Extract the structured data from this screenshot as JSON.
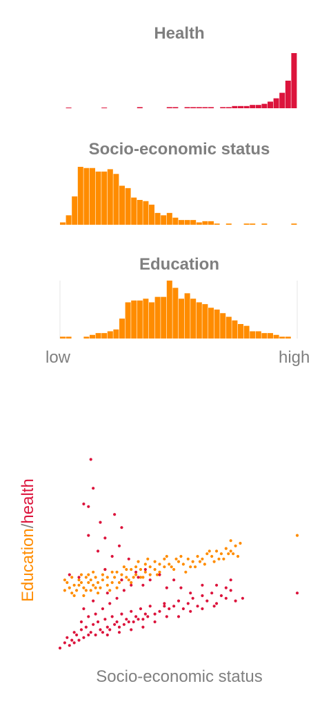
{
  "colors": {
    "health": "#dc143c",
    "education": "#ff8c00",
    "ses": "#ff8c00",
    "muted": "#7f7f7f",
    "grid": "#e6e6e6"
  },
  "range_labels": {
    "low": "low",
    "high": "high"
  },
  "chart_data": [
    {
      "type": "bar",
      "title": "Health",
      "xlabel": "",
      "ylabel": "",
      "bins": 40,
      "xlim": [
        0,
        1
      ],
      "values": [
        0,
        0.5,
        0,
        0,
        0,
        0,
        0,
        0.5,
        0,
        0,
        0,
        0,
        0,
        1,
        0,
        0,
        0,
        0,
        1,
        1,
        0,
        1,
        1,
        1,
        1,
        1,
        0,
        1,
        1,
        2,
        2,
        2,
        3,
        3,
        4,
        6,
        9,
        14,
        25,
        50
      ]
    },
    {
      "type": "bar",
      "title": "Socio-economic status",
      "xlabel": "",
      "ylabel": "",
      "bins": 40,
      "xlim": [
        0,
        1
      ],
      "values": [
        2,
        8,
        24,
        49,
        48,
        48,
        45,
        45,
        47,
        43,
        33,
        31,
        23,
        21,
        20,
        17,
        10,
        8,
        10,
        6,
        4,
        4,
        4,
        2,
        3,
        3,
        1,
        0,
        1,
        0,
        0,
        1,
        1,
        0,
        1,
        0,
        0,
        0,
        0,
        1
      ]
    },
    {
      "type": "bar",
      "title": "Education",
      "xlabel": "",
      "ylabel": "",
      "bins": 40,
      "xlim": [
        0,
        1
      ],
      "values": [
        1,
        1,
        0,
        0,
        1,
        2,
        3,
        3,
        4,
        5,
        11,
        20,
        21,
        21,
        22,
        20,
        23,
        23,
        32,
        28,
        22,
        25,
        22,
        20,
        19,
        17,
        16,
        14,
        12,
        10,
        8,
        7,
        4,
        4,
        3,
        3,
        2,
        1,
        1,
        0
      ]
    },
    {
      "type": "scatter",
      "title": "",
      "xlabel": "Socio-economic status",
      "ylabel": "Education/health",
      "xlim": [
        0,
        1
      ],
      "ylim": [
        0,
        1
      ],
      "series": [
        {
          "name": "Education",
          "points": [
            [
              0.02,
              0.22
            ],
            [
              0.04,
              0.23
            ],
            [
              0.05,
              0.21
            ],
            [
              0.06,
              0.24
            ],
            [
              0.03,
              0.25
            ],
            [
              0.07,
              0.22
            ],
            [
              0.08,
              0.26
            ],
            [
              0.1,
              0.23
            ],
            [
              0.12,
              0.25
            ],
            [
              0.14,
              0.24
            ],
            [
              0.09,
              0.28
            ],
            [
              0.11,
              0.27
            ],
            [
              0.13,
              0.22
            ],
            [
              0.15,
              0.27
            ],
            [
              0.16,
              0.25
            ],
            [
              0.18,
              0.26
            ],
            [
              0.2,
              0.27
            ],
            [
              0.22,
              0.25
            ],
            [
              0.24,
              0.29
            ],
            [
              0.26,
              0.28
            ],
            [
              0.28,
              0.27
            ],
            [
              0.3,
              0.3
            ],
            [
              0.32,
              0.28
            ],
            [
              0.34,
              0.3
            ],
            [
              0.36,
              0.29
            ],
            [
              0.38,
              0.31
            ],
            [
              0.4,
              0.3
            ],
            [
              0.42,
              0.32
            ],
            [
              0.44,
              0.31
            ],
            [
              0.46,
              0.32
            ],
            [
              0.48,
              0.3
            ],
            [
              0.5,
              0.33
            ],
            [
              0.52,
              0.32
            ],
            [
              0.54,
              0.34
            ],
            [
              0.56,
              0.33
            ],
            [
              0.58,
              0.35
            ],
            [
              0.6,
              0.34
            ],
            [
              0.62,
              0.36
            ],
            [
              0.64,
              0.35
            ],
            [
              0.66,
              0.37
            ],
            [
              0.68,
              0.36
            ],
            [
              0.7,
              0.38
            ],
            [
              0.72,
              0.37
            ],
            [
              0.74,
              0.39
            ],
            [
              0.1,
              0.2
            ],
            [
              0.05,
              0.27
            ],
            [
              0.17,
              0.23
            ],
            [
              0.19,
              0.3
            ],
            [
              0.21,
              0.22
            ],
            [
              0.23,
              0.27
            ],
            [
              0.25,
              0.25
            ],
            [
              0.27,
              0.31
            ],
            [
              0.29,
              0.26
            ],
            [
              0.31,
              0.27
            ],
            [
              0.33,
              0.33
            ],
            [
              0.35,
              0.27
            ],
            [
              0.37,
              0.34
            ],
            [
              0.41,
              0.28
            ],
            [
              0.45,
              0.35
            ],
            [
              0.49,
              0.34
            ],
            [
              0.53,
              0.29
            ],
            [
              0.57,
              0.31
            ],
            [
              0.61,
              0.32
            ],
            [
              0.65,
              0.33
            ],
            [
              0.69,
              0.34
            ],
            [
              0.73,
              0.36
            ],
            [
              0.14,
              0.29
            ],
            [
              0.16,
              0.21
            ],
            [
              0.08,
              0.24
            ],
            [
              0.12,
              0.28
            ],
            [
              0.02,
              0.26
            ],
            [
              0.06,
              0.2
            ],
            [
              0.09,
              0.25
            ],
            [
              0.11,
              0.22
            ],
            [
              0.13,
              0.26
            ],
            [
              0.15,
              0.23
            ],
            [
              0.18,
              0.28
            ],
            [
              0.2,
              0.24
            ],
            [
              0.22,
              0.29
            ],
            [
              0.24,
              0.23
            ],
            [
              0.26,
              0.26
            ],
            [
              0.28,
              0.3
            ],
            [
              0.3,
              0.25
            ],
            [
              0.32,
              0.31
            ],
            [
              0.34,
              0.27
            ],
            [
              0.36,
              0.32
            ],
            [
              0.38,
              0.28
            ],
            [
              0.4,
              0.33
            ],
            [
              0.42,
              0.29
            ],
            [
              0.44,
              0.34
            ],
            [
              0.47,
              0.31
            ],
            [
              0.51,
              0.35
            ],
            [
              0.55,
              0.31
            ],
            [
              0.59,
              0.33
            ],
            [
              0.63,
              0.37
            ],
            [
              0.67,
              0.34
            ],
            [
              0.71,
              0.36
            ],
            [
              0.75,
              0.35
            ],
            [
              0.76,
              0.4
            ],
            [
              0.72,
              0.41
            ],
            [
              1.0,
              0.43
            ]
          ]
        },
        {
          "name": "Health",
          "points": [
            [
              0.0,
              0.0
            ],
            [
              0.02,
              0.02
            ],
            [
              0.04,
              0.01
            ],
            [
              0.05,
              0.03
            ],
            [
              0.06,
              0.02
            ],
            [
              0.07,
              0.05
            ],
            [
              0.08,
              0.03
            ],
            [
              0.09,
              0.07
            ],
            [
              0.1,
              0.04
            ],
            [
              0.11,
              0.08
            ],
            [
              0.12,
              0.05
            ],
            [
              0.13,
              0.06
            ],
            [
              0.14,
              0.09
            ],
            [
              0.15,
              0.05
            ],
            [
              0.16,
              0.1
            ],
            [
              0.17,
              0.07
            ],
            [
              0.18,
              0.06
            ],
            [
              0.19,
              0.11
            ],
            [
              0.2,
              0.08
            ],
            [
              0.21,
              0.07
            ],
            [
              0.22,
              0.12
            ],
            [
              0.23,
              0.09
            ],
            [
              0.24,
              0.1
            ],
            [
              0.25,
              0.08
            ],
            [
              0.26,
              0.13
            ],
            [
              0.27,
              0.09
            ],
            [
              0.28,
              0.11
            ],
            [
              0.29,
              0.1
            ],
            [
              0.3,
              0.14
            ],
            [
              0.31,
              0.1
            ],
            [
              0.32,
              0.12
            ],
            [
              0.33,
              0.11
            ],
            [
              0.34,
              0.15
            ],
            [
              0.35,
              0.11
            ],
            [
              0.36,
              0.13
            ],
            [
              0.37,
              0.12
            ],
            [
              0.38,
              0.16
            ],
            [
              0.4,
              0.13
            ],
            [
              0.42,
              0.14
            ],
            [
              0.44,
              0.17
            ],
            [
              0.46,
              0.15
            ],
            [
              0.48,
              0.16
            ],
            [
              0.5,
              0.18
            ],
            [
              0.52,
              0.15
            ],
            [
              0.54,
              0.17
            ],
            [
              0.56,
              0.19
            ],
            [
              0.58,
              0.16
            ],
            [
              0.6,
              0.2
            ],
            [
              0.62,
              0.18
            ],
            [
              0.64,
              0.21
            ],
            [
              0.66,
              0.17
            ],
            [
              0.68,
              0.2
            ],
            [
              0.7,
              0.19
            ],
            [
              0.72,
              0.22
            ],
            [
              0.74,
              0.18
            ],
            [
              0.03,
              0.04
            ],
            [
              0.06,
              0.06
            ],
            [
              0.09,
              0.1
            ],
            [
              0.12,
              0.12
            ],
            [
              0.15,
              0.13
            ],
            [
              0.18,
              0.15
            ],
            [
              0.21,
              0.17
            ],
            [
              0.24,
              0.19
            ],
            [
              0.27,
              0.22
            ],
            [
              0.3,
              0.24
            ],
            [
              0.33,
              0.27
            ],
            [
              0.36,
              0.3
            ],
            [
              0.1,
              0.15
            ],
            [
              0.14,
              0.18
            ],
            [
              0.2,
              0.21
            ],
            [
              0.26,
              0.26
            ],
            [
              0.32,
              0.29
            ],
            [
              0.22,
              0.35
            ],
            [
              0.25,
              0.39
            ],
            [
              0.16,
              0.37
            ],
            [
              0.12,
              0.43
            ],
            [
              0.19,
              0.3
            ],
            [
              0.08,
              0.27
            ],
            [
              0.04,
              0.28
            ],
            [
              0.29,
              0.34
            ],
            [
              0.35,
              0.24
            ],
            [
              0.38,
              0.26
            ],
            [
              0.42,
              0.28
            ],
            [
              0.45,
              0.23
            ],
            [
              0.51,
              0.23
            ],
            [
              0.55,
              0.21
            ],
            [
              0.6,
              0.24
            ],
            [
              0.66,
              0.24
            ],
            [
              0.72,
              0.26
            ],
            [
              0.77,
              0.19
            ],
            [
              0.7,
              0.23
            ],
            [
              0.48,
              0.26
            ],
            [
              0.13,
              0.72
            ],
            [
              0.14,
              0.61
            ],
            [
              0.1,
              0.55
            ],
            [
              0.12,
              0.54
            ],
            [
              0.23,
              0.51
            ],
            [
              0.17,
              0.48
            ],
            [
              0.26,
              0.46
            ],
            [
              0.19,
              0.42
            ],
            [
              1.0,
              0.21
            ],
            [
              0.44,
              0.16
            ],
            [
              0.2,
              0.05
            ],
            [
              0.25,
              0.06
            ],
            [
              0.3,
              0.07
            ],
            [
              0.35,
              0.08
            ],
            [
              0.4,
              0.1
            ],
            [
              0.45,
              0.12
            ],
            [
              0.5,
              0.12
            ],
            [
              0.55,
              0.14
            ],
            [
              0.6,
              0.15
            ],
            [
              0.65,
              0.16
            ]
          ]
        }
      ]
    }
  ]
}
